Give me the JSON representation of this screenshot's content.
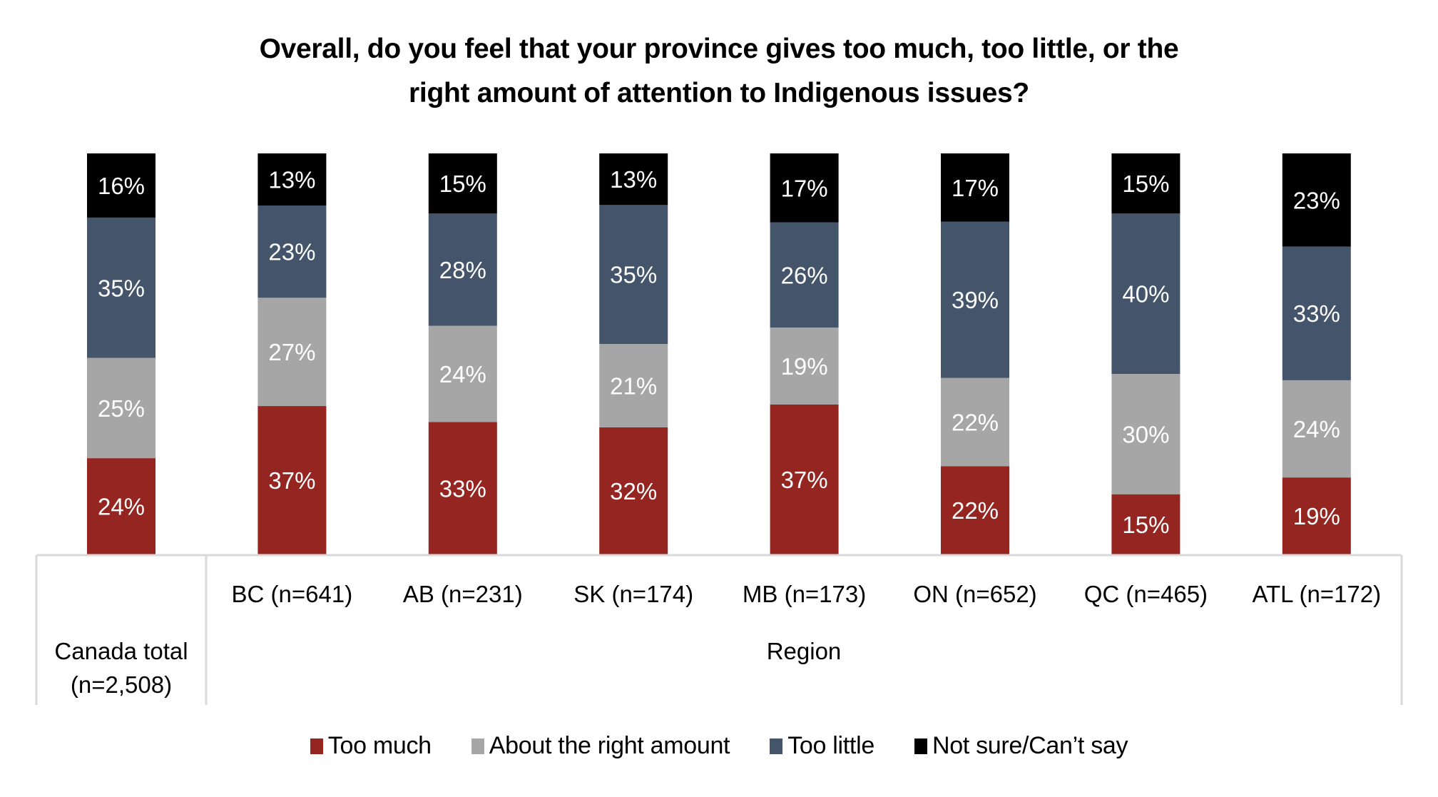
{
  "chart_data": {
    "type": "bar",
    "stacked": true,
    "title": [
      "Overall, do you feel that your province gives too much, too little, or the",
      "right amount of attention to Indigenous issues?"
    ],
    "categories": [
      "Canada total (n=2,508)",
      "BC (n=641)",
      "AB (n=231)",
      "SK (n=174)",
      "MB (n=173)",
      "ON (n=652)",
      "QC (n=465)",
      "ATL (n=172)"
    ],
    "category_groups": [
      {
        "label": "",
        "members": [
          "Canada total (n=2,508)"
        ]
      },
      {
        "label": "Region",
        "members": [
          "BC (n=641)",
          "AB (n=231)",
          "SK (n=174)",
          "MB (n=173)",
          "ON (n=652)",
          "QC (n=465)",
          "ATL (n=172)"
        ]
      }
    ],
    "canada_label_lines": [
      "Canada total",
      "(n=2,508)"
    ],
    "group_label": "Region",
    "series": [
      {
        "name": "Too much",
        "color": "#942520",
        "values": [
          24,
          37,
          33,
          32,
          37,
          22,
          15,
          19
        ]
      },
      {
        "name": "About the right amount",
        "color": "#a6a6a6",
        "values": [
          25,
          27,
          24,
          21,
          19,
          22,
          30,
          24
        ]
      },
      {
        "name": "Too little",
        "color": "#44546a",
        "values": [
          35,
          23,
          28,
          35,
          26,
          39,
          40,
          33
        ]
      },
      {
        "name": "Not sure/Can’t say",
        "color": "#000000",
        "values": [
          16,
          13,
          15,
          13,
          17,
          17,
          15,
          23
        ]
      }
    ],
    "value_suffix": "%",
    "ylim": [
      0,
      100
    ],
    "grid": false,
    "legend_position": "bottom"
  }
}
